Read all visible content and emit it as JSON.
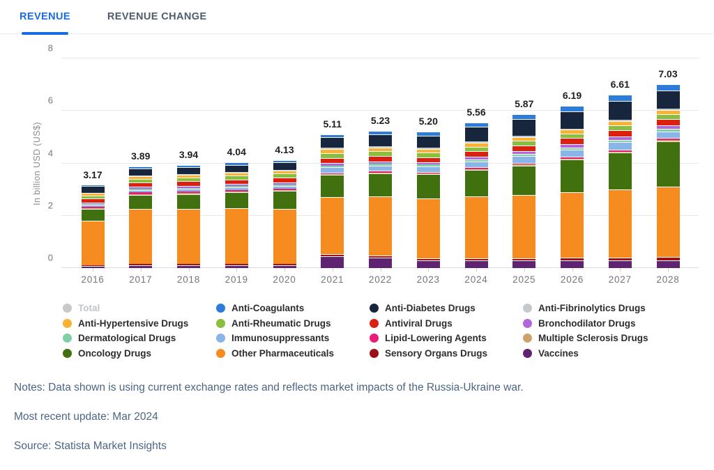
{
  "tabs": [
    {
      "label": "REVENUE",
      "active": true
    },
    {
      "label": "REVENUE CHANGE",
      "active": false
    }
  ],
  "accent_color": "#1a6be0",
  "chart_data": {
    "type": "bar",
    "stacked": true,
    "title": "",
    "xlabel": "",
    "ylabel": "In billion USD (US$)",
    "ylim": [
      0,
      8
    ],
    "yticks": [
      0,
      2,
      4,
      6,
      8
    ],
    "grid": true,
    "categories": [
      "2016",
      "2017",
      "2018",
      "2019",
      "2020",
      "2021",
      "2022",
      "2023",
      "2024",
      "2025",
      "2026",
      "2027",
      "2028"
    ],
    "totals": [
      3.17,
      3.89,
      3.94,
      4.04,
      4.13,
      5.11,
      5.23,
      5.2,
      5.56,
      5.87,
      6.19,
      6.61,
      7.03
    ],
    "series": [
      {
        "name": "Vaccines",
        "color": "#5f2371",
        "values": [
          0.08,
          0.1,
          0.1,
          0.11,
          0.12,
          0.45,
          0.4,
          0.3,
          0.28,
          0.28,
          0.28,
          0.29,
          0.3
        ]
      },
      {
        "name": "Sensory Organs Drugs",
        "color": "#9c1018",
        "values": [
          0.04,
          0.05,
          0.05,
          0.05,
          0.05,
          0.08,
          0.08,
          0.08,
          0.1,
          0.1,
          0.11,
          0.12,
          0.13
        ]
      },
      {
        "name": "Other Pharmaceuticals",
        "color": "#f68c20",
        "values": [
          1.7,
          2.1,
          2.1,
          2.12,
          2.1,
          2.17,
          2.25,
          2.28,
          2.35,
          2.42,
          2.5,
          2.6,
          2.67
        ]
      },
      {
        "name": "Oncology Drugs",
        "color": "#41700f",
        "values": [
          0.45,
          0.55,
          0.58,
          0.62,
          0.68,
          0.85,
          0.88,
          0.92,
          1.02,
          1.12,
          1.25,
          1.4,
          1.75
        ]
      },
      {
        "name": "Multiple Sclerosis Drugs",
        "color": "#cba36b",
        "values": [
          0.02,
          0.03,
          0.03,
          0.03,
          0.03,
          0.03,
          0.03,
          0.03,
          0.03,
          0.03,
          0.04,
          0.04,
          0.04
        ]
      },
      {
        "name": "Lipid-Lowering Agents",
        "color": "#e61e78",
        "values": [
          0.05,
          0.06,
          0.06,
          0.06,
          0.06,
          0.07,
          0.07,
          0.07,
          0.07,
          0.07,
          0.07,
          0.07,
          0.07
        ]
      },
      {
        "name": "Immunosuppressants",
        "color": "#8ab5e8",
        "values": [
          0.07,
          0.09,
          0.1,
          0.1,
          0.11,
          0.2,
          0.21,
          0.21,
          0.23,
          0.25,
          0.27,
          0.29,
          0.26
        ]
      },
      {
        "name": "Dermatological Drugs",
        "color": "#7fd0a9",
        "values": [
          0.03,
          0.04,
          0.04,
          0.04,
          0.04,
          0.06,
          0.06,
          0.06,
          0.07,
          0.08,
          0.09,
          0.09,
          0.1
        ]
      },
      {
        "name": "Bronchodilator Drugs",
        "color": "#b266d9",
        "values": [
          0.07,
          0.09,
          0.09,
          0.09,
          0.09,
          0.1,
          0.1,
          0.1,
          0.11,
          0.12,
          0.12,
          0.13,
          0.13
        ]
      },
      {
        "name": "Antiviral Drugs",
        "color": "#dc200f",
        "values": [
          0.14,
          0.16,
          0.17,
          0.17,
          0.18,
          0.2,
          0.2,
          0.19,
          0.21,
          0.22,
          0.23,
          0.24,
          0.25
        ]
      },
      {
        "name": "Anti-Rheumatic Drugs",
        "color": "#8abe3e",
        "values": [
          0.12,
          0.14,
          0.14,
          0.15,
          0.15,
          0.18,
          0.18,
          0.17,
          0.17,
          0.17,
          0.17,
          0.18,
          0.18
        ]
      },
      {
        "name": "Anti-Hypertensive Drugs",
        "color": "#f9b234",
        "values": [
          0.09,
          0.11,
          0.11,
          0.11,
          0.11,
          0.15,
          0.15,
          0.14,
          0.15,
          0.15,
          0.15,
          0.16,
          0.16
        ]
      },
      {
        "name": "Anti-Fibrinolytics Drugs",
        "color": "#c6c9cc",
        "values": [
          0.02,
          0.03,
          0.03,
          0.03,
          0.03,
          0.05,
          0.05,
          0.05,
          0.05,
          0.05,
          0.05,
          0.05,
          0.05
        ]
      },
      {
        "name": "Anti-Diabetes Drugs",
        "color": "#17263d",
        "values": [
          0.25,
          0.26,
          0.26,
          0.27,
          0.28,
          0.4,
          0.44,
          0.46,
          0.55,
          0.62,
          0.66,
          0.73,
          0.69
        ]
      },
      {
        "name": "Anti-Coagulants",
        "color": "#2e7cd9",
        "values": [
          0.04,
          0.08,
          0.08,
          0.09,
          0.1,
          0.12,
          0.13,
          0.14,
          0.17,
          0.19,
          0.2,
          0.22,
          0.25
        ]
      }
    ]
  },
  "legend": {
    "items": [
      {
        "label": "Total",
        "color": "#c8c8c8",
        "muted": true
      },
      {
        "label": "Anti-Coagulants",
        "color": "#2e7cd9",
        "muted": false
      },
      {
        "label": "Anti-Diabetes Drugs",
        "color": "#17263d",
        "muted": false
      },
      {
        "label": "Anti-Fibrinolytics Drugs",
        "color": "#c6c9cc",
        "muted": false
      },
      {
        "label": "Anti-Hypertensive Drugs",
        "color": "#f9b234",
        "muted": false
      },
      {
        "label": "Anti-Rheumatic Drugs",
        "color": "#8abe3e",
        "muted": false
      },
      {
        "label": "Antiviral Drugs",
        "color": "#dc200f",
        "muted": false
      },
      {
        "label": "Bronchodilator Drugs",
        "color": "#b266d9",
        "muted": false
      },
      {
        "label": "Dermatological Drugs",
        "color": "#7fd0a9",
        "muted": false
      },
      {
        "label": "Immunosuppressants",
        "color": "#8ab5e8",
        "muted": false
      },
      {
        "label": "Lipid-Lowering Agents",
        "color": "#e61e78",
        "muted": false
      },
      {
        "label": "Multiple Sclerosis Drugs",
        "color": "#cba36b",
        "muted": false
      },
      {
        "label": "Oncology Drugs",
        "color": "#41700f",
        "muted": false
      },
      {
        "label": "Other Pharmaceuticals",
        "color": "#f68c20",
        "muted": false
      },
      {
        "label": "Sensory Organs Drugs",
        "color": "#9c1018",
        "muted": false
      },
      {
        "label": "Vaccines",
        "color": "#5f2371",
        "muted": false
      }
    ]
  },
  "notes": {
    "line1": "Notes: Data shown is using current exchange rates and reflects market impacts of the Russia-Ukraine war.",
    "line2": "Most recent update: Mar 2024",
    "line3": "Source: Statista Market Insights"
  }
}
